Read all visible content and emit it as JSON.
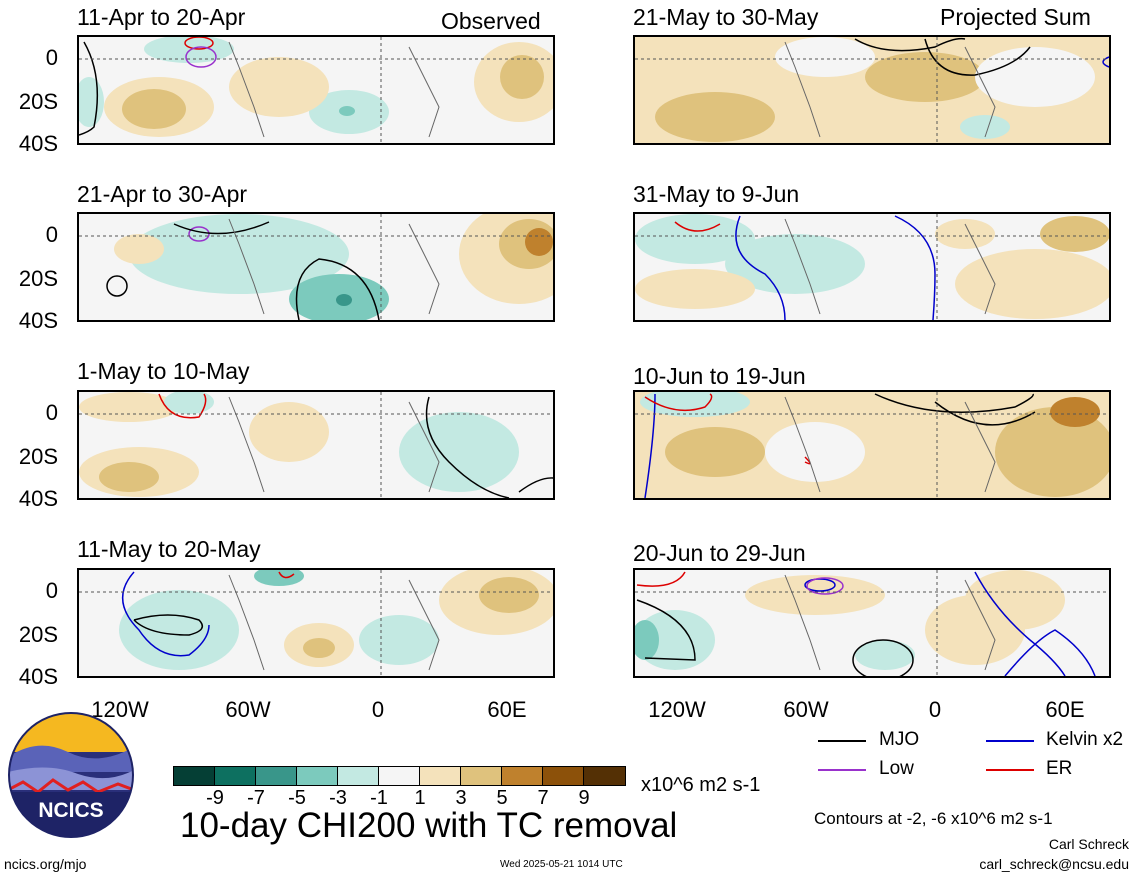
{
  "header": {
    "observed_label": "Observed",
    "projected_label": "Projected Sum"
  },
  "panels": {
    "p1": "11-Apr to 20-Apr",
    "p2": "21-Apr to 30-Apr",
    "p3": "1-May to 10-May",
    "p4": "11-May to 20-May",
    "p5": "21-May to 30-May",
    "p6": "31-May to 9-Jun",
    "p7": "10-Jun to 19-Jun",
    "p8": "20-Jun to 29-Jun"
  },
  "axes": {
    "y_ticks": [
      "0",
      "20S",
      "40S"
    ],
    "x_ticks": [
      "120W",
      "60W",
      "0",
      "60E"
    ]
  },
  "colorbar": {
    "values": [
      "-9",
      "-7",
      "-5",
      "-3",
      "-1",
      "1",
      "3",
      "5",
      "7",
      "9"
    ],
    "units": "x10^6 m2 s-1",
    "colors": [
      "#053f35",
      "#0d7060",
      "#39968a",
      "#7ccabd",
      "#c3e9e2",
      "#f5f5f5",
      "#f4e2bb",
      "#dfc27d",
      "#bf812d",
      "#8c510a",
      "#543005"
    ]
  },
  "legend": {
    "mjo": {
      "label": "MJO",
      "color": "#000000"
    },
    "kelvin": {
      "label": "Kelvin x2",
      "color": "#0000cc"
    },
    "low": {
      "label": "Low",
      "color": "#9932cc"
    },
    "er": {
      "label": "ER",
      "color": "#dd0000"
    },
    "contours_note": "Contours at -2, -6 x10^6 m2 s-1"
  },
  "main_title": "10-day CHI200 with TC removal",
  "footer": {
    "left_url": "ncics.org/mjo",
    "timestamp": "Wed 2025-05-21 1014 UTC",
    "author": "Carl Schreck",
    "email": "carl_schreck@ncsu.edu"
  },
  "logo": {
    "text": "NCICS"
  }
}
